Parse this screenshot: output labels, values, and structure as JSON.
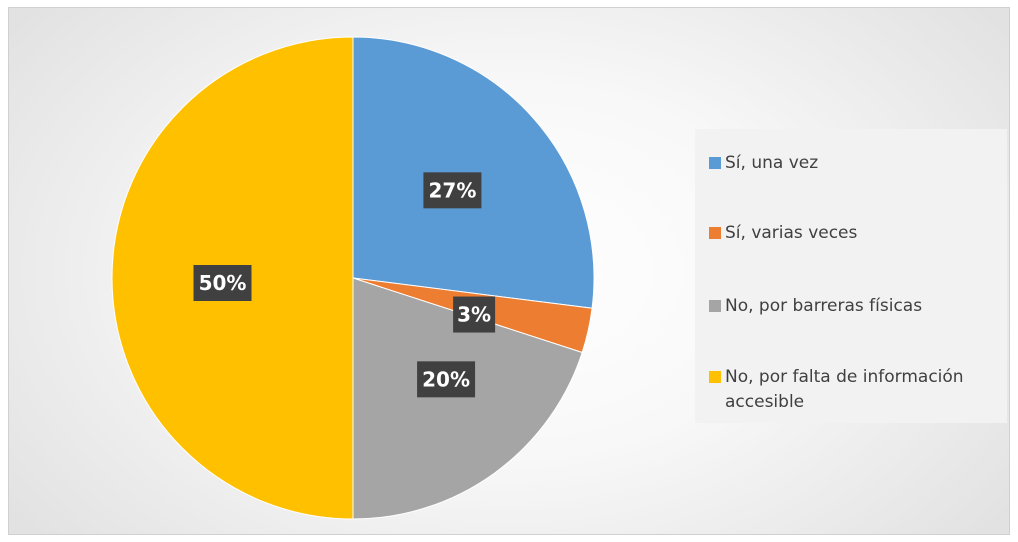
{
  "chart_data": {
    "type": "pie",
    "categories": [
      "Sí, una vez",
      "Sí, varias veces",
      "No, por barreras físicas",
      "No, por falta de información accesible"
    ],
    "values": [
      27,
      3,
      20,
      50
    ],
    "data_labels": [
      "27%",
      "3%",
      "20%",
      "50%"
    ],
    "colors": [
      "#5B9BD5",
      "#ED7D31",
      "#A5A5A5",
      "#FFC000"
    ],
    "label_background": "#404040",
    "label_color": "#FFFFFF",
    "legend_position": "right",
    "start_angle_deg": 0,
    "direction": "clockwise"
  },
  "legend": {
    "items": [
      {
        "label": "Sí, una vez",
        "color": "#5B9BD5"
      },
      {
        "label": "Sí, varias veces",
        "color": "#ED7D31"
      },
      {
        "label": "No, por barreras físicas",
        "color": "#A5A5A5"
      },
      {
        "label": "No, por falta de información accesible",
        "color": "#FFC000"
      }
    ]
  }
}
